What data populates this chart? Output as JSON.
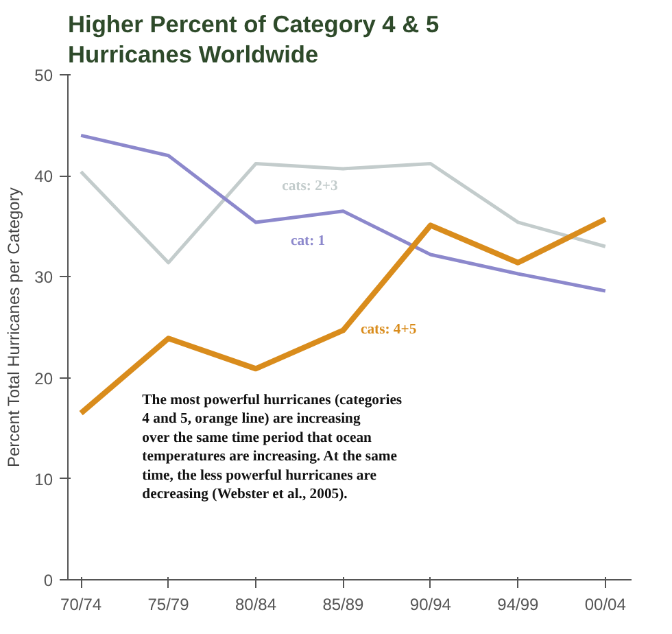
{
  "chart_data": {
    "type": "line",
    "title": "Higher Percent of Category 4 & 5\nHurricanes Worldwide",
    "ylabel": "Percent Total Hurricanes per Category",
    "categories": [
      "70/74",
      "75/79",
      "80/84",
      "85/89",
      "90/94",
      "94/99",
      "00/04"
    ],
    "series": [
      {
        "name": "cats: 2+3",
        "color": "#c3cccc",
        "values": [
          40.4,
          31.4,
          41.2,
          40.7,
          41.2,
          35.4,
          33
        ]
      },
      {
        "name": "cat: 1",
        "color": "#8c88cc",
        "values": [
          44,
          42,
          35.4,
          36.5,
          32.2,
          30.3,
          28.6
        ]
      },
      {
        "name": "cats: 4+5",
        "color": "#d98c1c",
        "values": [
          16.5,
          23.9,
          20.9,
          24.7,
          35.1,
          31.4,
          35.7
        ]
      }
    ],
    "ylim": [
      0,
      50
    ],
    "yticks": [
      0,
      10,
      20,
      30,
      40,
      50
    ],
    "grid": false,
    "marker": "none",
    "line_style": "solid",
    "annotations": [
      "The most powerful hurricanes (categories\n4 and 5, orange line) are increasing\nover the same time period that ocean\ntemperatures are increasing. At the same\ntime, the less powerful hurricanes are\ndecreasing (Webster et al., 2005)."
    ]
  }
}
